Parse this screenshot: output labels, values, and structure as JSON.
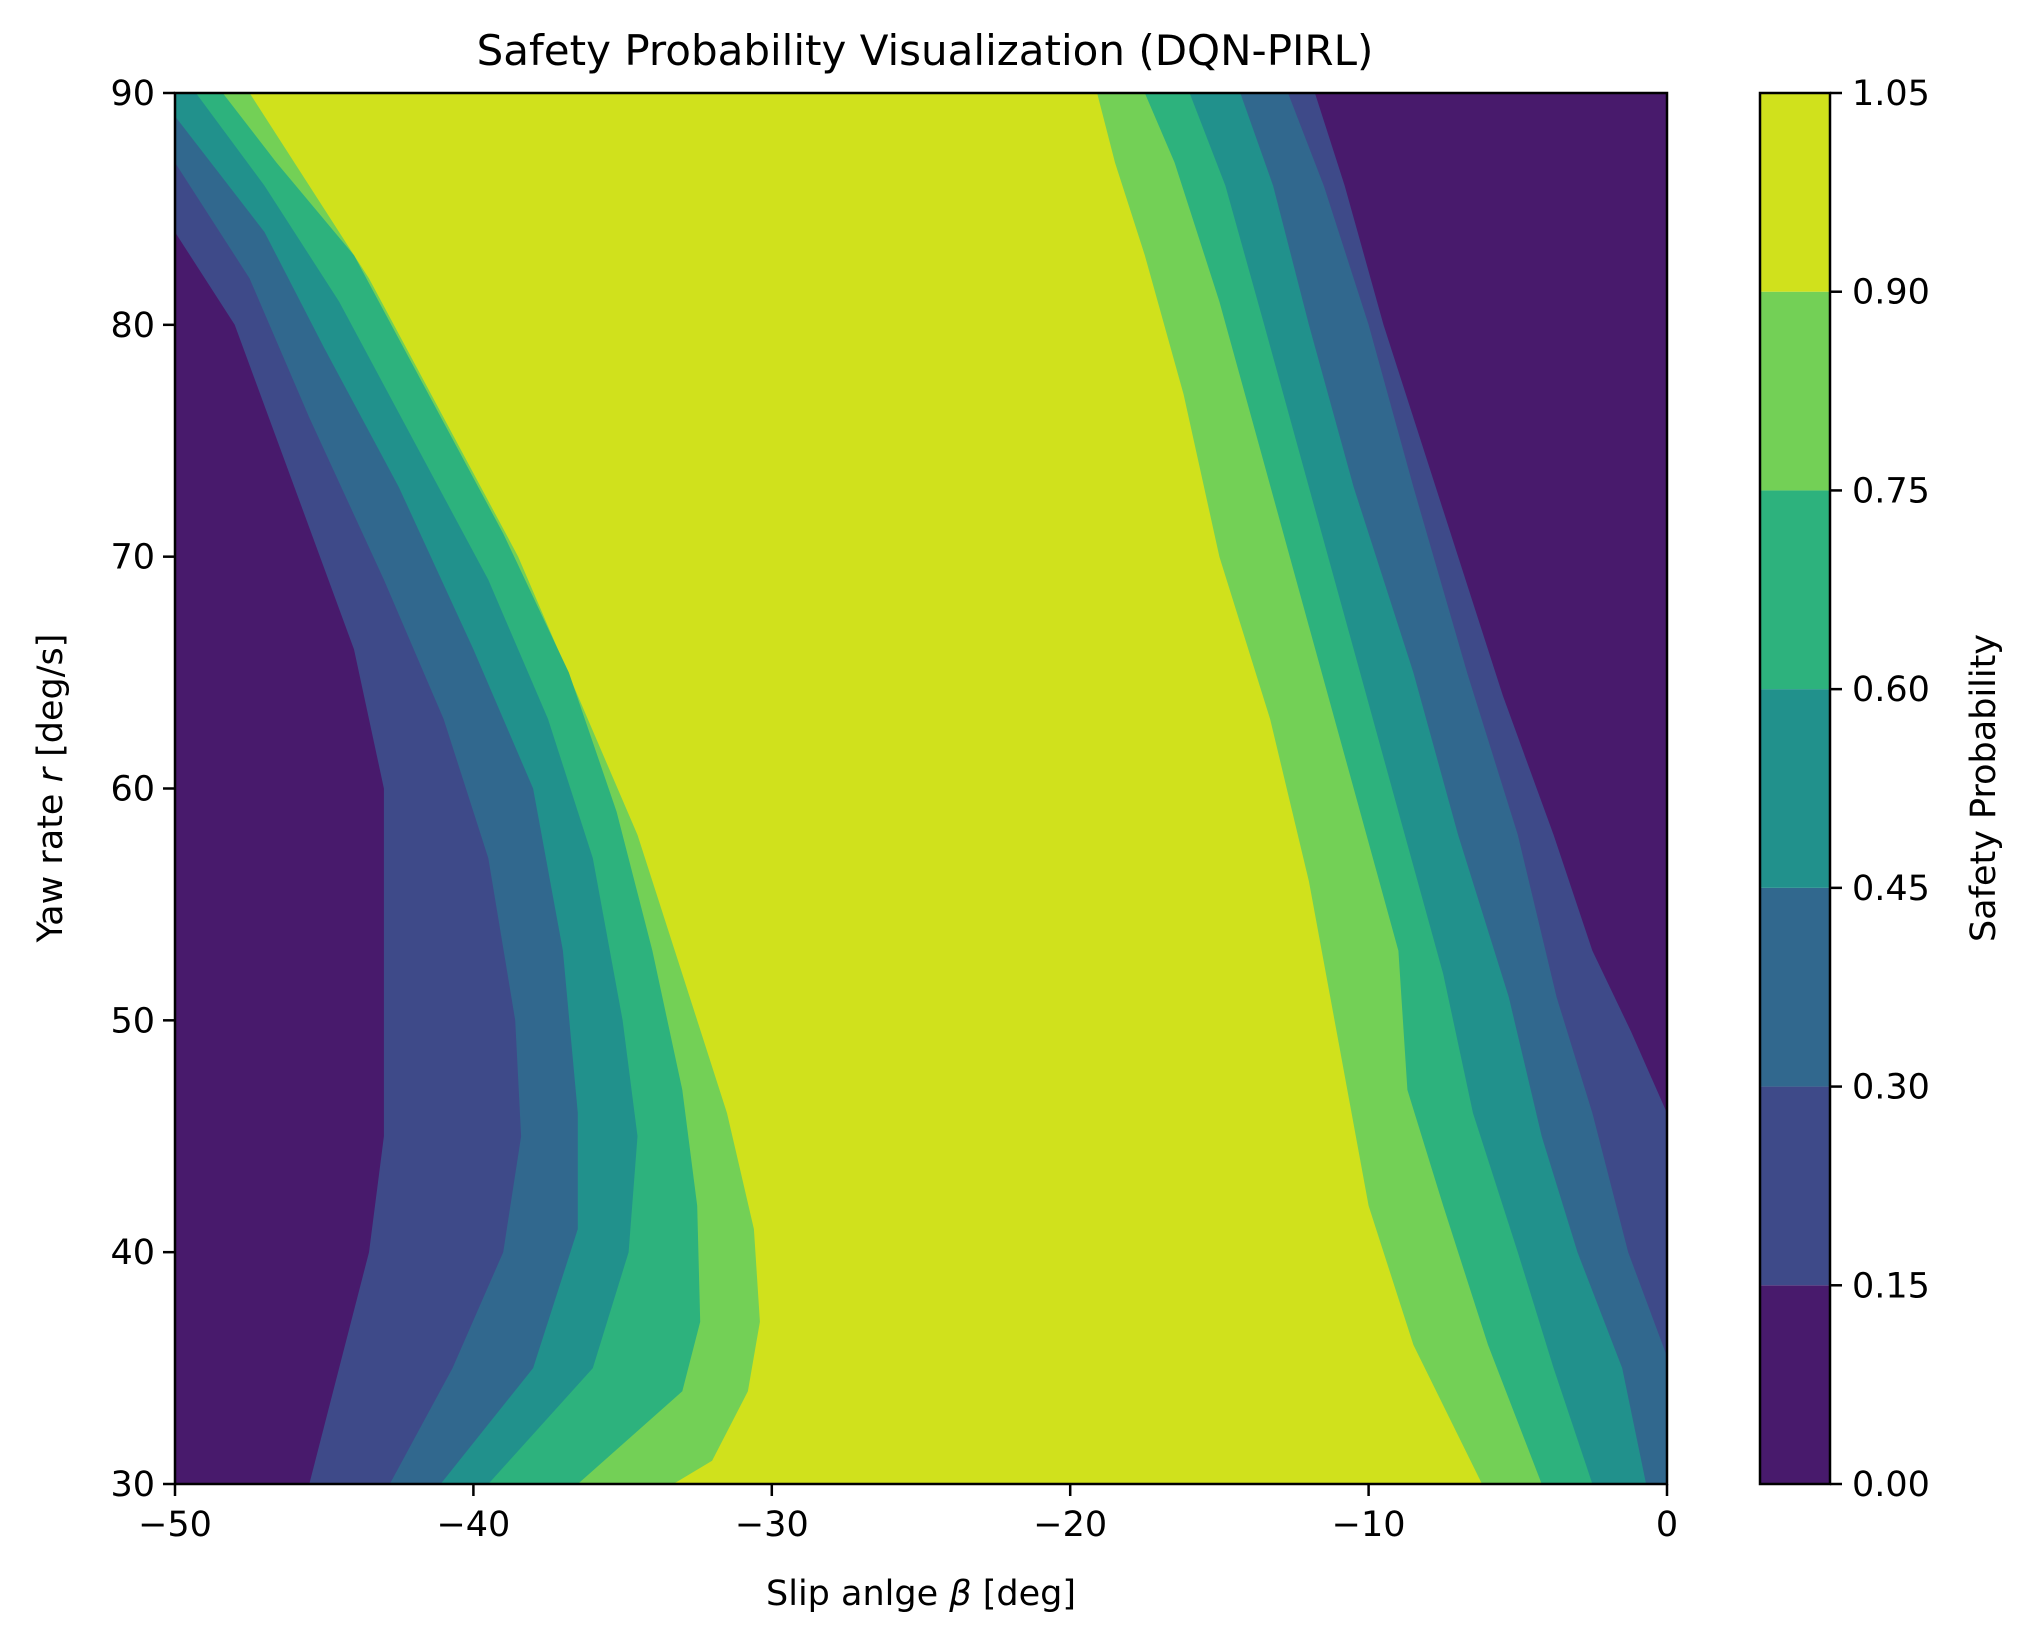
{
  "chart_data": {
    "type": "filled-contour",
    "title": "Safety Probability Visualization (DQN-PIRL)",
    "xlabel": {
      "prefix": "Slip anlge ",
      "symbol": "β",
      "suffix": " [deg]"
    },
    "ylabel": {
      "prefix": "Yaw rate ",
      "symbol": "r",
      "suffix": " [deg/s]"
    },
    "xlim": [
      -50,
      0
    ],
    "ylim": [
      30,
      90
    ],
    "xticks": [
      -50,
      -40,
      -30,
      -20,
      -10,
      0
    ],
    "xtick_labels": [
      "−50",
      "−40",
      "−30",
      "−20",
      "−10",
      "0"
    ],
    "yticks": [
      30,
      40,
      50,
      60,
      70,
      80,
      90
    ],
    "ytick_labels": [
      "30",
      "40",
      "50",
      "60",
      "70",
      "80",
      "90"
    ],
    "colorbar": {
      "label": "Safety Probability",
      "levels": [
        0.0,
        0.15,
        0.3,
        0.45,
        0.6,
        0.75,
        0.9,
        1.05
      ],
      "tick_labels": [
        "0.00",
        "0.15",
        "0.30",
        "0.45",
        "0.60",
        "0.75",
        "0.90",
        "1.05"
      ],
      "colors": [
        "#481a6c",
        "#3e4a89",
        "#31688e",
        "#21918c",
        "#2db27d",
        "#73d056",
        "#d0e11c"
      ]
    },
    "left_contours": [
      {
        "level": 0.15,
        "points": [
          [
            -50,
            84
          ],
          [
            -48,
            80
          ],
          [
            -46,
            73
          ],
          [
            -44,
            66
          ],
          [
            -43,
            60
          ],
          [
            -43,
            55
          ],
          [
            -43,
            50
          ],
          [
            -43,
            45
          ],
          [
            -43.5,
            40
          ],
          [
            -44.5,
            35
          ],
          [
            -45.5,
            30
          ]
        ]
      },
      {
        "level": 0.3,
        "points": [
          [
            -50,
            87
          ],
          [
            -47.5,
            82
          ],
          [
            -45.5,
            76
          ],
          [
            -43,
            69
          ],
          [
            -41,
            63
          ],
          [
            -39.5,
            57
          ],
          [
            -38.6,
            50
          ],
          [
            -38.4,
            45
          ],
          [
            -39,
            40
          ],
          [
            -40.7,
            35
          ],
          [
            -42.8,
            30
          ]
        ]
      },
      {
        "level": 0.45,
        "points": [
          [
            -50,
            89
          ],
          [
            -47,
            84
          ],
          [
            -45,
            79
          ],
          [
            -42.5,
            73
          ],
          [
            -40,
            66
          ],
          [
            -38,
            60
          ],
          [
            -37,
            53
          ],
          [
            -36.5,
            46
          ],
          [
            -36.5,
            41
          ],
          [
            -38,
            35
          ],
          [
            -41.1,
            30
          ]
        ]
      },
      {
        "level": 0.6,
        "points": [
          [
            -49.3,
            90
          ],
          [
            -47,
            86
          ],
          [
            -44.5,
            81
          ],
          [
            -42,
            75
          ],
          [
            -39.5,
            69
          ],
          [
            -37.5,
            63
          ],
          [
            -36,
            57
          ],
          [
            -35,
            50
          ],
          [
            -34.5,
            45
          ],
          [
            -34.8,
            40
          ],
          [
            -36,
            35
          ],
          [
            -39.5,
            30
          ]
        ]
      },
      {
        "level": 0.75,
        "points": [
          [
            -48.4,
            90
          ],
          [
            -46.6,
            87
          ],
          [
            -44,
            83
          ],
          [
            -41.5,
            77
          ],
          [
            -39,
            71
          ],
          [
            -36.8,
            65
          ],
          [
            -35.2,
            59
          ],
          [
            -34,
            53
          ],
          [
            -33,
            47
          ],
          [
            -32.5,
            42
          ],
          [
            -32.4,
            37
          ],
          [
            -33,
            34
          ],
          [
            -36.5,
            30
          ]
        ]
      },
      {
        "level": 0.9,
        "points": [
          [
            -47.5,
            90
          ],
          [
            -46,
            87
          ],
          [
            -43.5,
            82
          ],
          [
            -41,
            76
          ],
          [
            -38.5,
            70
          ],
          [
            -36.5,
            64
          ],
          [
            -34.5,
            58
          ],
          [
            -33,
            52
          ],
          [
            -31.5,
            46
          ],
          [
            -30.6,
            41
          ],
          [
            -30.4,
            37
          ],
          [
            -30.8,
            34
          ],
          [
            -32,
            31
          ],
          [
            -33.3,
            30
          ]
        ]
      }
    ],
    "right_contours": [
      {
        "level": 0.9,
        "points": [
          [
            -19.1,
            90
          ],
          [
            -18.5,
            87
          ],
          [
            -17.5,
            83
          ],
          [
            -16.2,
            77
          ],
          [
            -15,
            70
          ],
          [
            -13.3,
            63
          ],
          [
            -12,
            56
          ],
          [
            -11,
            49
          ],
          [
            -10,
            42
          ],
          [
            -8.5,
            36
          ],
          [
            -6.2,
            30
          ]
        ]
      },
      {
        "level": 0.75,
        "points": [
          [
            -17.5,
            90
          ],
          [
            -16.5,
            87
          ],
          [
            -15,
            81
          ],
          [
            -13.5,
            74
          ],
          [
            -12,
            67
          ],
          [
            -10.5,
            60
          ],
          [
            -9,
            53
          ],
          [
            -8.7,
            47
          ],
          [
            -7.5,
            42
          ],
          [
            -6,
            36
          ],
          [
            -4.2,
            30
          ]
        ]
      },
      {
        "level": 0.6,
        "points": [
          [
            -16,
            90
          ],
          [
            -14.8,
            86
          ],
          [
            -13.5,
            80
          ],
          [
            -12,
            73
          ],
          [
            -10.5,
            66
          ],
          [
            -9,
            59
          ],
          [
            -7.5,
            52
          ],
          [
            -6.5,
            46
          ],
          [
            -5,
            40
          ],
          [
            -3.8,
            35
          ],
          [
            -2.5,
            30
          ]
        ]
      },
      {
        "level": 0.45,
        "points": [
          [
            -14.3,
            90
          ],
          [
            -13.2,
            86
          ],
          [
            -12,
            80
          ],
          [
            -10.5,
            73
          ],
          [
            -8.5,
            65
          ],
          [
            -7,
            58
          ],
          [
            -5.3,
            51
          ],
          [
            -4.2,
            45
          ],
          [
            -3,
            40
          ],
          [
            -1.5,
            35
          ],
          [
            -0.7,
            30
          ]
        ]
      },
      {
        "level": 0.3,
        "points": [
          [
            -12.7,
            90
          ],
          [
            -11.5,
            86
          ],
          [
            -10,
            80
          ],
          [
            -8.5,
            73
          ],
          [
            -6.7,
            65
          ],
          [
            -5,
            58
          ],
          [
            -3.7,
            51
          ],
          [
            -2.5,
            46
          ],
          [
            -1.3,
            40
          ],
          [
            0,
            35.5
          ],
          [
            0,
            30
          ]
        ]
      },
      {
        "level": 0.15,
        "points": [
          [
            -11.8,
            90
          ],
          [
            -10.8,
            86
          ],
          [
            -9.5,
            80
          ],
          [
            -7.5,
            72
          ],
          [
            -5.5,
            64
          ],
          [
            -3.8,
            58
          ],
          [
            -2.5,
            53
          ],
          [
            -1.2,
            49.5
          ],
          [
            0,
            46
          ],
          [
            0,
            30
          ]
        ]
      }
    ]
  }
}
